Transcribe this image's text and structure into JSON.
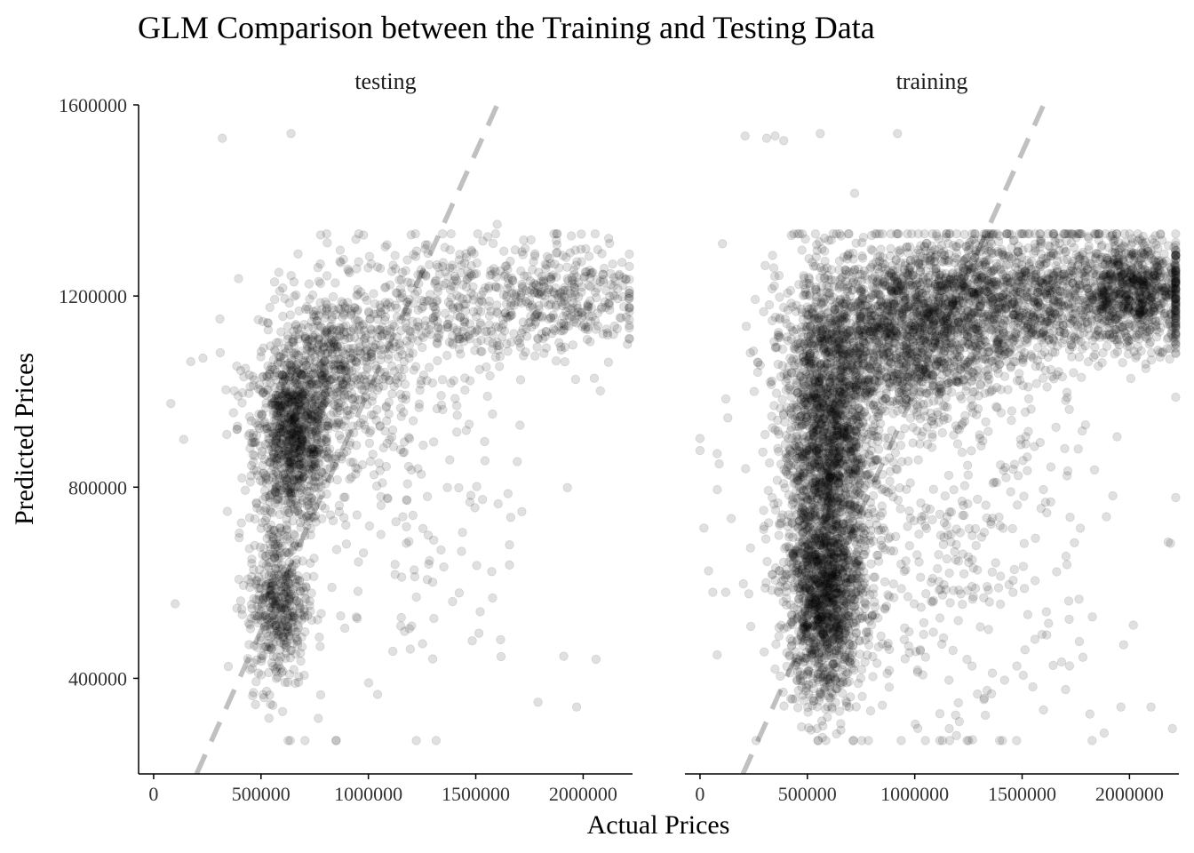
{
  "chart_data": {
    "type": "scatter",
    "title": "GLM Comparison between the Training and Testing Data",
    "xlabel": "Actual Prices",
    "ylabel": "Predicted Prices",
    "xlim": [
      -70000,
      2230000
    ],
    "ylim": [
      200000,
      1600000
    ],
    "x_ticks": [
      0,
      500000,
      1000000,
      1500000,
      2000000
    ],
    "x_tick_labels": [
      "0",
      "500000",
      "1000000",
      "1500000",
      "2000000"
    ],
    "y_ticks": [
      400000,
      800000,
      1200000,
      1600000
    ],
    "y_tick_labels": [
      "400000",
      "800000",
      "1200000",
      "1600000"
    ],
    "grid": false,
    "reference_line": {
      "style": "dashed",
      "color": "#c0c0c0",
      "slope": 1,
      "intercept": 0
    },
    "point_color": "#000000",
    "point_opacity": 0.12,
    "panels": [
      {
        "name": "testing",
        "clusters": [
          {
            "x_center": 650000,
            "x_spread": 90000,
            "y_center": 900000,
            "y_spread": 90000,
            "count": 900
          },
          {
            "x_center": 850000,
            "x_spread": 180000,
            "y_center": 1050000,
            "y_spread": 80000,
            "count": 600
          },
          {
            "x_center": 580000,
            "x_spread": 70000,
            "y_center": 560000,
            "y_spread": 90000,
            "count": 450
          },
          {
            "x_center": 1400000,
            "x_spread": 300000,
            "y_center": 1180000,
            "y_spread": 70000,
            "count": 450
          },
          {
            "x_center": 1950000,
            "x_spread": 160000,
            "y_center": 1210000,
            "y_spread": 60000,
            "count": 250
          },
          {
            "x_center": 1100000,
            "x_spread": 350000,
            "y_center": 750000,
            "y_spread": 220000,
            "count": 220
          }
        ],
        "outliers": [
          [
            320000,
            1530000
          ],
          [
            640000,
            1540000
          ],
          [
            80000,
            975000
          ],
          [
            140000,
            900000
          ],
          [
            230000,
            1070000
          ],
          [
            850000,
            270000
          ],
          [
            1970000,
            340000
          ],
          [
            2060000,
            440000
          ],
          [
            1790000,
            350000
          ],
          [
            1600000,
            1350000
          ]
        ]
      },
      {
        "name": "training",
        "clusters": [
          {
            "x_center": 600000,
            "x_spread": 110000,
            "y_center": 900000,
            "y_spread": 160000,
            "count": 1800
          },
          {
            "x_center": 580000,
            "x_spread": 90000,
            "y_center": 560000,
            "y_spread": 110000,
            "count": 1200
          },
          {
            "x_center": 950000,
            "x_spread": 250000,
            "y_center": 1120000,
            "y_spread": 90000,
            "count": 1600
          },
          {
            "x_center": 1500000,
            "x_spread": 330000,
            "y_center": 1200000,
            "y_spread": 70000,
            "count": 1400
          },
          {
            "x_center": 2050000,
            "x_spread": 130000,
            "y_center": 1210000,
            "y_spread": 55000,
            "count": 700
          },
          {
            "x_center": 1100000,
            "x_spread": 400000,
            "y_center": 700000,
            "y_spread": 230000,
            "count": 500
          }
        ],
        "outliers": [
          [
            210000,
            1535000
          ],
          [
            310000,
            1530000
          ],
          [
            350000,
            1535000
          ],
          [
            390000,
            1525000
          ],
          [
            560000,
            1540000
          ],
          [
            920000,
            1540000
          ],
          [
            720000,
            1415000
          ],
          [
            40000,
            625000
          ],
          [
            80000,
            870000
          ],
          [
            130000,
            945000
          ],
          [
            60000,
            580000
          ],
          [
            120000,
            580000
          ],
          [
            2200000,
            295000
          ],
          [
            2180000,
            685000
          ],
          [
            1960000,
            340000
          ],
          [
            2100000,
            340000
          ]
        ]
      }
    ]
  }
}
